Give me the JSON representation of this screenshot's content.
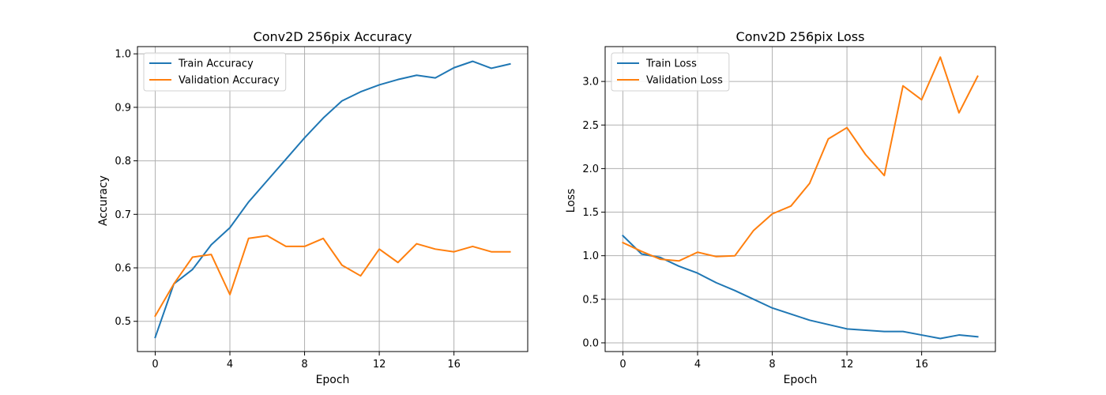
{
  "chart_data": [
    {
      "type": "line",
      "title": "Conv2D 256pix Accuracy",
      "xlabel": "Epoch",
      "ylabel": "Accuracy",
      "xlim": [
        -0.95,
        19.95
      ],
      "ylim": [
        0.4435,
        1.0135
      ],
      "xticks": [
        0,
        4,
        8,
        12,
        16
      ],
      "yticks": [
        0.5,
        0.6,
        0.7,
        0.8,
        0.9,
        1.0
      ],
      "grid": true,
      "legend_position": "upper-left",
      "x": [
        0,
        1,
        2,
        3,
        4,
        5,
        6,
        7,
        8,
        9,
        10,
        11,
        12,
        13,
        14,
        15,
        16,
        17,
        18,
        19
      ],
      "series": [
        {
          "name": "Train Accuracy",
          "color": "#1f77b4",
          "values": [
            0.47,
            0.57,
            0.597,
            0.643,
            0.675,
            0.723,
            0.763,
            0.803,
            0.843,
            0.88,
            0.912,
            0.929,
            0.942,
            0.952,
            0.96,
            0.955,
            0.974,
            0.986,
            0.973,
            0.981
          ]
        },
        {
          "name": "Validation Accuracy",
          "color": "#ff7f0e",
          "values": [
            0.51,
            0.57,
            0.62,
            0.625,
            0.55,
            0.655,
            0.66,
            0.64,
            0.64,
            0.655,
            0.605,
            0.585,
            0.635,
            0.61,
            0.645,
            0.635,
            0.63,
            0.64,
            0.63,
            0.63
          ]
        }
      ]
    },
    {
      "type": "line",
      "title": "Conv2D 256pix Loss",
      "xlabel": "Epoch",
      "ylabel": "Loss",
      "xlim": [
        -0.95,
        19.95
      ],
      "ylim": [
        -0.1,
        3.4
      ],
      "xticks": [
        0,
        4,
        8,
        12,
        16
      ],
      "yticks": [
        0.0,
        0.5,
        1.0,
        1.5,
        2.0,
        2.5,
        3.0
      ],
      "grid": true,
      "legend_position": "upper-left",
      "x": [
        0,
        1,
        2,
        3,
        4,
        5,
        6,
        7,
        8,
        9,
        10,
        11,
        12,
        13,
        14,
        15,
        16,
        17,
        18,
        19
      ],
      "series": [
        {
          "name": "Train Loss",
          "color": "#1f77b4",
          "values": [
            1.23,
            1.02,
            0.98,
            0.88,
            0.8,
            0.69,
            0.6,
            0.5,
            0.4,
            0.33,
            0.26,
            0.21,
            0.16,
            0.145,
            0.13,
            0.13,
            0.09,
            0.05,
            0.09,
            0.07
          ]
        },
        {
          "name": "Validation Loss",
          "color": "#ff7f0e",
          "values": [
            1.15,
            1.05,
            0.96,
            0.94,
            1.04,
            0.99,
            1.0,
            1.29,
            1.48,
            1.57,
            1.83,
            2.34,
            2.47,
            2.16,
            1.92,
            2.95,
            2.79,
            3.28,
            2.64,
            3.06
          ]
        }
      ]
    }
  ]
}
